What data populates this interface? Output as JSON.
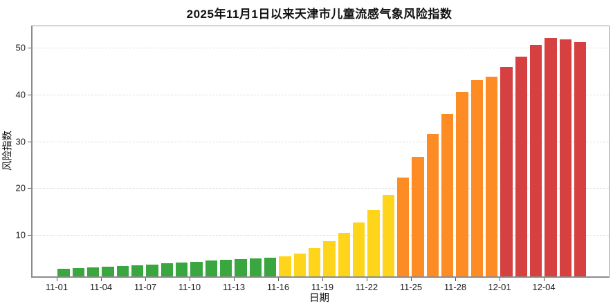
{
  "chart_data": {
    "type": "bar",
    "title": "2025年11月1日以来天津市儿童流感气象风险指数",
    "xlabel": "日期",
    "ylabel": "风险指数",
    "categories": [
      "11-01",
      "11-02",
      "11-03",
      "11-04",
      "11-05",
      "11-06",
      "11-07",
      "11-08",
      "11-09",
      "11-10",
      "11-11",
      "11-12",
      "11-13",
      "11-14",
      "11-15",
      "11-16",
      "11-17",
      "11-18",
      "11-19",
      "11-20",
      "11-21",
      "11-22",
      "11-23",
      "11-24",
      "11-25",
      "11-26",
      "11-27",
      "11-28",
      "11-29",
      "11-30",
      "12-01",
      "12-02",
      "12-03",
      "12-04",
      "12-05",
      "12-06"
    ],
    "values": [
      2.8,
      2.9,
      3.0,
      3.2,
      3.3,
      3.5,
      3.7,
      3.9,
      4.1,
      4.3,
      4.5,
      4.7,
      4.8,
      5.0,
      5.2,
      5.4,
      6.0,
      7.2,
      8.7,
      10.4,
      12.6,
      15.3,
      18.5,
      22.2,
      26.7,
      31.6,
      35.8,
      40.5,
      43.0,
      43.8,
      45.8,
      48.1,
      50.6,
      52.1,
      51.8,
      51.2
    ],
    "bar_color_names": [
      "green",
      "green",
      "green",
      "green",
      "green",
      "green",
      "green",
      "green",
      "green",
      "green",
      "green",
      "green",
      "green",
      "green",
      "green",
      "yellow",
      "yellow",
      "yellow",
      "yellow",
      "yellow",
      "yellow",
      "yellow",
      "yellow",
      "orange",
      "orange",
      "orange",
      "orange",
      "orange",
      "orange",
      "orange",
      "red",
      "red",
      "red",
      "red",
      "red",
      "red"
    ],
    "palette": {
      "green": "#3aa63f",
      "yellow": "#ffd51c",
      "orange": "#fd8c25",
      "red": "#d64040"
    },
    "x_tick_labels": [
      "11-01",
      "11-04",
      "11-07",
      "11-10",
      "11-13",
      "11-16",
      "11-19",
      "11-22",
      "11-25",
      "11-28",
      "12-01",
      "12-04"
    ],
    "y_ticks": [
      10,
      20,
      30,
      40,
      50
    ],
    "ylim": [
      1.1,
      54.6
    ],
    "grid": "horizontal-dashed",
    "legend": "none"
  }
}
